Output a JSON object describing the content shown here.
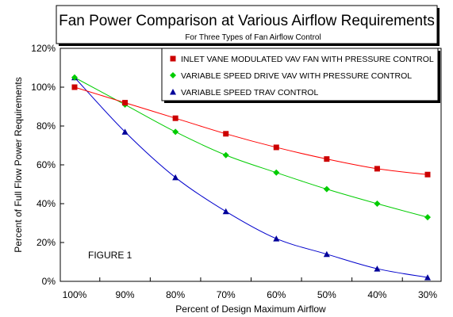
{
  "chart_data": {
    "type": "line",
    "title": "Fan Power Comparison at Various Airflow Requirements",
    "subtitle": "For Three Types of Fan Airflow Control",
    "xlabel": "Percent of Design Maximum Airflow",
    "ylabel": "Percent of Full Flow Power Requirements",
    "annotation": "FIGURE 1",
    "categories": [
      "100%",
      "90%",
      "80%",
      "70%",
      "60%",
      "50%",
      "40%",
      "30%"
    ],
    "yticks": [
      "0%",
      "20%",
      "40%",
      "60%",
      "80%",
      "100%",
      "120%"
    ],
    "ylim": [
      0,
      120
    ],
    "grid": false,
    "legend_position": "top-right",
    "series": [
      {
        "name": "INLET VANE MODULATED VAV FAN WITH PRESSURE CONTROL",
        "color": "#ff0000",
        "marker_color": "#cc0000",
        "marker": "square",
        "values": [
          100,
          92,
          84,
          76,
          69,
          63,
          58,
          55
        ]
      },
      {
        "name": "VARIABLE SPEED DRIVE VAV WITH PRESSURE CONTROL",
        "color": "#00cc00",
        "marker_color": "#00cc00",
        "marker": "diamond",
        "values": [
          105,
          91,
          77,
          65,
          56,
          47.5,
          40,
          33
        ]
      },
      {
        "name": "VARIABLE SPEED TRAV CONTROL",
        "color": "#0000cc",
        "marker_color": "#000099",
        "marker": "triangle",
        "values": [
          105,
          77,
          53.5,
          36,
          22,
          14,
          6.5,
          2
        ]
      }
    ]
  }
}
